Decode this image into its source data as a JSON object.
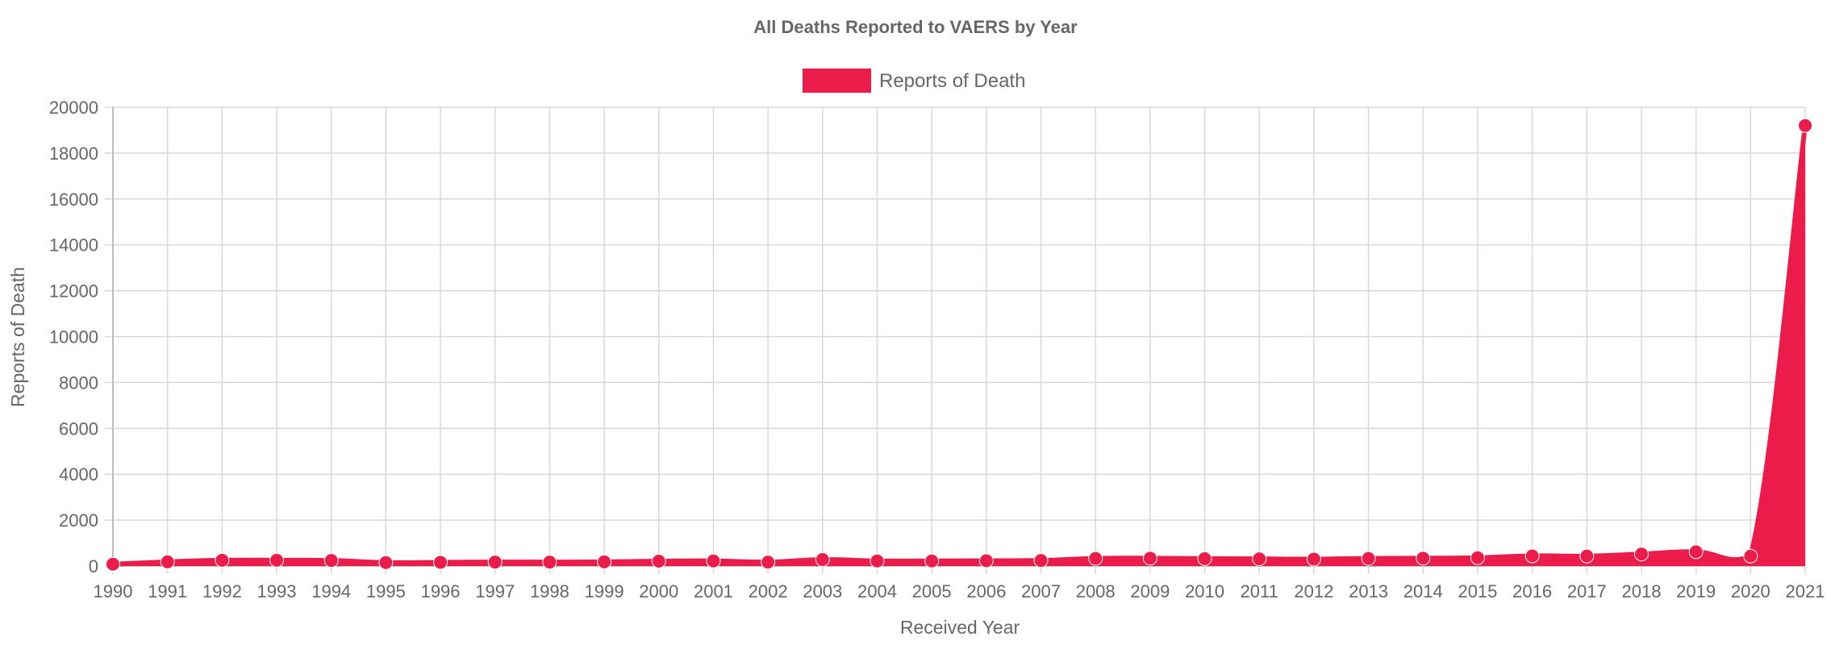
{
  "chart_data": {
    "type": "area",
    "title": "All Deaths Reported to VAERS by Year",
    "xlabel": "Received Year",
    "ylabel": "Reports of Death",
    "ylim": [
      0,
      20000
    ],
    "yticks": [
      0,
      2000,
      4000,
      6000,
      8000,
      10000,
      12000,
      14000,
      16000,
      18000,
      20000
    ],
    "grid": true,
    "legend_position": "top-center",
    "categories": [
      "1990",
      "1991",
      "1992",
      "1993",
      "1994",
      "1995",
      "1996",
      "1997",
      "1998",
      "1999",
      "2000",
      "2001",
      "2002",
      "2003",
      "2004",
      "2005",
      "2006",
      "2007",
      "2008",
      "2009",
      "2010",
      "2011",
      "2012",
      "2013",
      "2014",
      "2015",
      "2016",
      "2017",
      "2018",
      "2019",
      "2020",
      "2021"
    ],
    "series": [
      {
        "name": "Reports of Death",
        "color": "#EB1B4A",
        "values": [
          80,
          180,
          250,
          250,
          240,
          150,
          160,
          170,
          170,
          180,
          210,
          220,
          170,
          280,
          220,
          220,
          230,
          240,
          330,
          340,
          320,
          310,
          300,
          330,
          340,
          360,
          440,
          430,
          520,
          620,
          430,
          19200
        ]
      }
    ]
  }
}
